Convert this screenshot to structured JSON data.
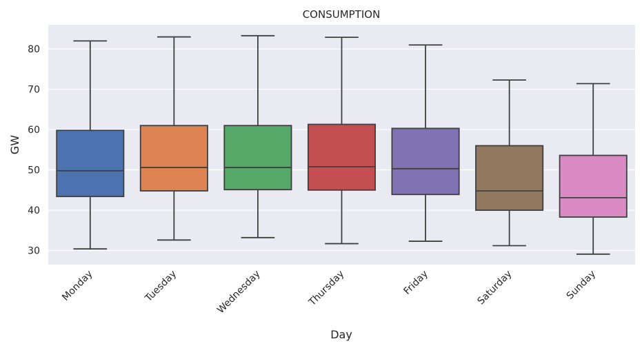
{
  "chart_data": {
    "type": "box",
    "title": "CONSUMPTION",
    "xlabel": "Day",
    "ylabel": "GW",
    "ylim": [
      26.5,
      86
    ],
    "yticks": [
      30,
      40,
      50,
      60,
      70,
      80
    ],
    "categories": [
      "Monday",
      "Tuesday",
      "Wednesday",
      "Thursday",
      "Friday",
      "Saturday",
      "Sunday"
    ],
    "boxes": [
      {
        "min": 30.4,
        "q1": 43.4,
        "median": 49.8,
        "q3": 59.8,
        "max": 82.0,
        "color": "#4c72b0"
      },
      {
        "min": 32.6,
        "q1": 44.8,
        "median": 50.6,
        "q3": 61.0,
        "max": 83.0,
        "color": "#dd8452"
      },
      {
        "min": 33.2,
        "q1": 45.1,
        "median": 50.6,
        "q3": 61.0,
        "max": 83.3,
        "color": "#55a868"
      },
      {
        "min": 31.7,
        "q1": 45.0,
        "median": 50.8,
        "q3": 61.3,
        "max": 82.9,
        "color": "#c44e52"
      },
      {
        "min": 32.3,
        "q1": 43.9,
        "median": 50.3,
        "q3": 60.3,
        "max": 81.0,
        "color": "#8172b3"
      },
      {
        "min": 31.2,
        "q1": 40.0,
        "median": 44.8,
        "q3": 56.0,
        "max": 72.3,
        "color": "#937860"
      },
      {
        "min": 29.1,
        "q1": 38.3,
        "median": 43.1,
        "q3": 53.6,
        "max": 71.4,
        "color": "#da8bc3"
      }
    ],
    "grid": true,
    "background": "#eaeaf2"
  }
}
